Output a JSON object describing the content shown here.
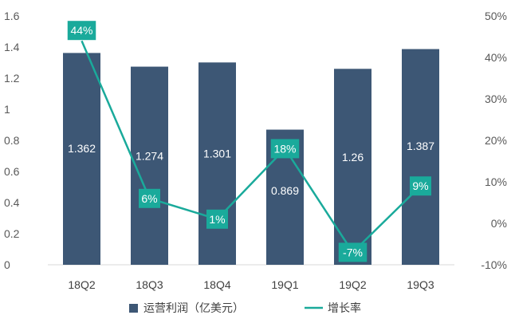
{
  "chart_data": {
    "type": "bar",
    "categories": [
      "18Q2",
      "18Q3",
      "18Q4",
      "19Q1",
      "19Q2",
      "19Q3"
    ],
    "series": [
      {
        "name": "运营利润（亿美元）",
        "type": "bar",
        "axis": "left",
        "values": [
          1.362,
          1.274,
          1.301,
          0.869,
          1.26,
          1.387
        ],
        "labels": [
          "1.362",
          "1.274",
          "1.301",
          "0.869",
          "1.26",
          "1.387"
        ],
        "color": "#3d5775"
      },
      {
        "name": "增长率",
        "type": "line",
        "axis": "right",
        "values": [
          44,
          6,
          1,
          18,
          -7,
          9
        ],
        "labels": [
          "44%",
          "6%",
          "1%",
          "18%",
          "-7%",
          "9%"
        ],
        "color": "#1aaa9b"
      }
    ],
    "y_left": {
      "ylim": [
        0,
        1.6
      ],
      "ticks": [
        0,
        0.2,
        0.4,
        0.6,
        0.8,
        1,
        1.2,
        1.4,
        1.6
      ],
      "tick_labels": [
        "0",
        "0.2",
        "0.4",
        "0.6",
        "0.8",
        "1",
        "1.2",
        "1.4",
        "1.6"
      ]
    },
    "y_right": {
      "ylim": [
        -10,
        50
      ],
      "ticks": [
        -10,
        0,
        10,
        20,
        30,
        40,
        50
      ],
      "tick_labels": [
        "-10%",
        "0%",
        "10%",
        "20%",
        "30%",
        "40%",
        "50%"
      ]
    },
    "grid": false,
    "legend": "bottom",
    "xlabel": "",
    "ylabel": ""
  },
  "legend": {
    "items": [
      "运营利润（亿美元）",
      "增长率"
    ]
  }
}
